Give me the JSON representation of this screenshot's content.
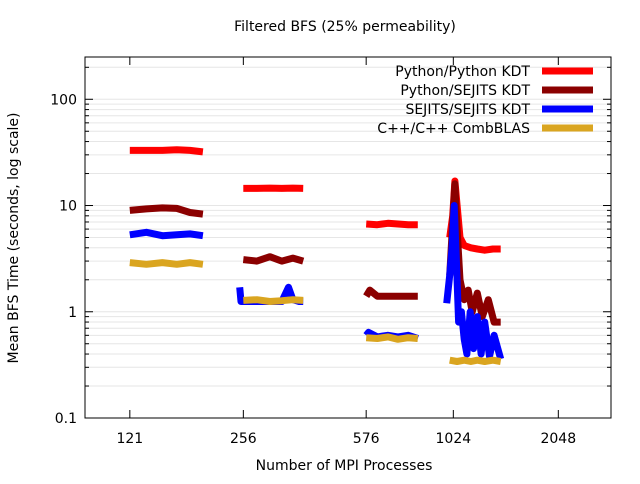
{
  "chart_data": {
    "type": "line",
    "title": "Filtered BFS (25% permeability)",
    "xlabel": "Number of MPI Processes",
    "ylabel": "Mean BFS Time (seconds, log scale)",
    "x_scale": "log",
    "y_scale": "log",
    "xlim": [
      90,
      2900
    ],
    "ylim": [
      0.1,
      250
    ],
    "x_ticks": [
      {
        "value": 121,
        "label": "121"
      },
      {
        "value": 256,
        "label": "256"
      },
      {
        "value": 576,
        "label": "576"
      },
      {
        "value": 1024,
        "label": "1024"
      },
      {
        "value": 2048,
        "label": "2048"
      }
    ],
    "y_ticks": [
      {
        "value": 0.1,
        "label": "0.1"
      },
      {
        "value": 1,
        "label": "1"
      },
      {
        "value": 10,
        "label": "10"
      },
      {
        "value": 100,
        "label": "100"
      }
    ],
    "grid": "horizontal minor lines",
    "legend_position": "top-right",
    "series": [
      {
        "name": "Python/Python KDT",
        "color": "#ff0000",
        "segments": [
          {
            "x": [
              121,
              135,
              150,
              165,
              180,
              196
            ],
            "y": [
              33,
              33,
              33,
              33.5,
              33,
              32
            ]
          },
          {
            "x": [
              256,
              280,
              305,
              330,
              355,
              380
            ],
            "y": [
              14.5,
              14.5,
              14.6,
              14.5,
              14.6,
              14.5
            ]
          },
          {
            "x": [
              576,
              620,
              665,
              710,
              760,
              810
            ],
            "y": [
              6.7,
              6.6,
              6.8,
              6.7,
              6.6,
              6.6
            ]
          },
          {
            "x": [
              1000,
              1020,
              1035,
              1050,
              1070,
              1100,
              1150,
              1200,
              1260,
              1330,
              1400
            ],
            "y": [
              5.0,
              8.0,
              17.0,
              10.0,
              5.0,
              4.2,
              4.0,
              3.9,
              3.8,
              3.9,
              3.9
            ]
          }
        ]
      },
      {
        "name": "Python/SEJITS KDT",
        "color": "#8b0000",
        "segments": [
          {
            "x": [
              121,
              135,
              150,
              165,
              180,
              196
            ],
            "y": [
              9.0,
              9.3,
              9.5,
              9.4,
              8.6,
              8.3
            ]
          },
          {
            "x": [
              256,
              280,
              305,
              330,
              355,
              380
            ],
            "y": [
              3.1,
              3.0,
              3.3,
              3.0,
              3.2,
              3.0
            ]
          },
          {
            "x": [
              576,
              590,
              620,
              665,
              710,
              760,
              810
            ],
            "y": [
              1.4,
              1.6,
              1.4,
              1.4,
              1.4,
              1.4,
              1.4
            ]
          },
          {
            "x": [
              1000,
              1020,
              1035,
              1050,
              1070,
              1100,
              1130,
              1160,
              1200,
              1240,
              1290,
              1340,
              1400
            ],
            "y": [
              2.2,
              7.0,
              16.0,
              6.0,
              2.0,
              1.3,
              1.6,
              1.0,
              1.5,
              0.9,
              1.3,
              0.8,
              0.8
            ]
          }
        ]
      },
      {
        "name": "SEJITS/SEJITS KDT",
        "color": "#0000ff",
        "segments": [
          {
            "x": [
              121,
              135,
              150,
              165,
              180,
              196
            ],
            "y": [
              5.3,
              5.6,
              5.2,
              5.3,
              5.4,
              5.2
            ]
          },
          {
            "x": [
              250,
              252,
              256,
              280,
              305,
              330,
              345,
              355,
              370,
              380
            ],
            "y": [
              1.7,
              1.25,
              1.25,
              1.25,
              1.25,
              1.25,
              1.7,
              1.3,
              1.25,
              1.25
            ]
          },
          {
            "x": [
              576,
              585,
              620,
              665,
              710,
              760,
              810
            ],
            "y": [
              0.6,
              0.64,
              0.58,
              0.6,
              0.58,
              0.6,
              0.56
            ]
          },
          {
            "x": [
              980,
              1000,
              1015,
              1030,
              1045,
              1060,
              1080,
              1100,
              1120,
              1145,
              1170,
              1200,
              1230,
              1260,
              1300,
              1340,
              1400
            ],
            "y": [
              1.2,
              2.2,
              4.0,
              10.0,
              3.0,
              0.8,
              1.0,
              0.55,
              0.4,
              1.0,
              0.45,
              0.9,
              0.4,
              0.8,
              0.38,
              0.6,
              0.36
            ]
          }
        ]
      },
      {
        "name": "C++/C++ CombBLAS",
        "color": "#daa520",
        "segments": [
          {
            "x": [
              121,
              135,
              150,
              165,
              180,
              196
            ],
            "y": [
              2.9,
              2.8,
              2.9,
              2.8,
              2.9,
              2.8
            ]
          },
          {
            "x": [
              256,
              280,
              305,
              330,
              355,
              380
            ],
            "y": [
              1.28,
              1.3,
              1.25,
              1.27,
              1.3,
              1.28
            ]
          },
          {
            "x": [
              576,
              620,
              665,
              710,
              760,
              810
            ],
            "y": [
              0.57,
              0.56,
              0.58,
              0.55,
              0.57,
              0.56
            ]
          },
          {
            "x": [
              1000,
              1050,
              1100,
              1150,
              1200,
              1260,
              1330,
              1400
            ],
            "y": [
              0.35,
              0.34,
              0.35,
              0.34,
              0.35,
              0.34,
              0.35,
              0.34
            ]
          }
        ]
      }
    ]
  }
}
